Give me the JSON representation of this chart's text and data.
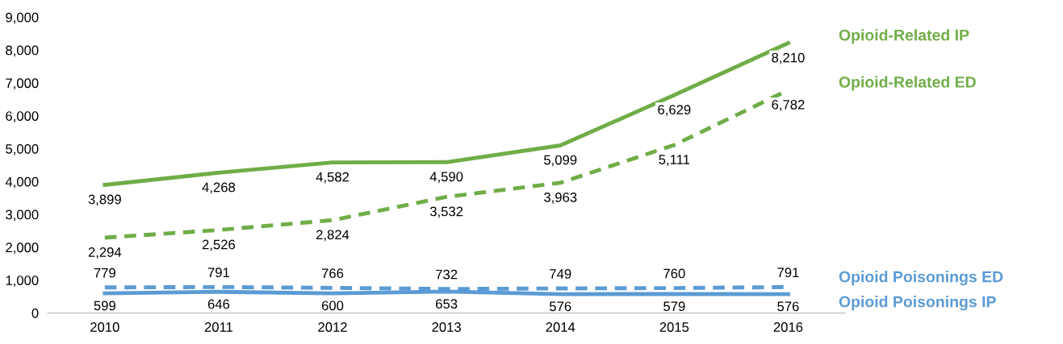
{
  "chart_data": {
    "type": "line",
    "categories": [
      "2010",
      "2011",
      "2012",
      "2013",
      "2014",
      "2015",
      "2016"
    ],
    "series": [
      {
        "name": "Opioid-Related IP",
        "color": "#70ad47",
        "line_style": "solid",
        "values": [
          3899,
          4268,
          4582,
          4590,
          5099,
          6629,
          8210
        ],
        "value_labels": [
          "3,899",
          "4,268",
          "4,582",
          "4,590",
          "5,099",
          "6,629",
          "8,210"
        ]
      },
      {
        "name": "Opioid-Related ED",
        "color": "#70ad47",
        "line_style": "dashed",
        "values": [
          2294,
          2526,
          2824,
          3532,
          3963,
          5111,
          6782
        ],
        "value_labels": [
          "2,294",
          "2,526",
          "2,824",
          "3,532",
          "3,963",
          "5,111",
          "6,782"
        ]
      },
      {
        "name": "Opioid Poisonings ED",
        "color": "#5b9bd5",
        "line_style": "dashed",
        "values": [
          779,
          791,
          766,
          732,
          749,
          760,
          791
        ],
        "value_labels": [
          "779",
          "791",
          "766",
          "732",
          "749",
          "760",
          "791"
        ]
      },
      {
        "name": "Opioid Poisonings IP",
        "color": "#5b9bd5",
        "line_style": "solid",
        "values": [
          599,
          646,
          600,
          653,
          576,
          579,
          576
        ],
        "value_labels": [
          "599",
          "646",
          "600",
          "653",
          "576",
          "579",
          "576"
        ]
      }
    ],
    "ylim": [
      0,
      9000
    ],
    "yticks": [
      0,
      {
        "value": 1000,
        "label": "1,000"
      },
      {
        "value": 2000,
        "label": "2,000"
      },
      {
        "value": 3000,
        "label": "3,000"
      },
      {
        "value": 4000,
        "label": "4,000"
      },
      {
        "value": 5000,
        "label": "5,000"
      },
      {
        "value": 6000,
        "label": "6,000"
      },
      {
        "value": 7000,
        "label": "7,000"
      },
      {
        "value": 8000,
        "label": "8,000"
      },
      {
        "value": 9000,
        "label": "9,000"
      }
    ],
    "grid": false,
    "marker": "none"
  }
}
